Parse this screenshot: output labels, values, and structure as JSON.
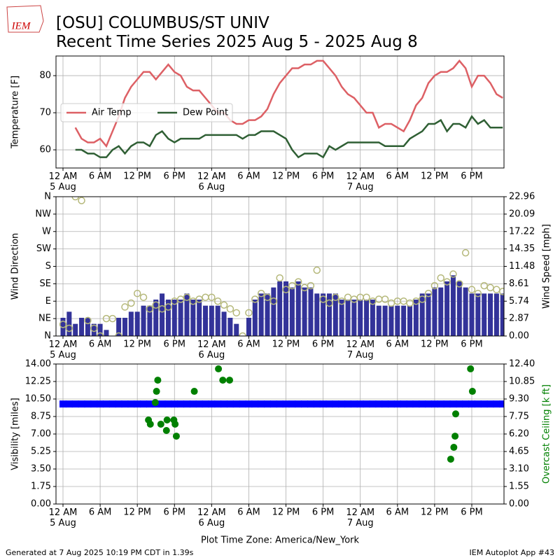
{
  "header": {
    "logo": "IEM",
    "title": "[OSU] COLUMBUS/ST UNIV",
    "subtitle": "Recent Time Series 2025 Aug 5 - 2025 Aug 8"
  },
  "footer": {
    "generated": "Generated at 7 Aug 2025 10:19 PM CDT in 1.39s",
    "app": "IEM Autoplot App #43"
  },
  "chart_data": [
    {
      "type": "line",
      "ylabel": "Temperature [F]",
      "grid": true,
      "legend": "center left",
      "xlim": [
        -1.13,
        71.2
      ],
      "ylim": [
        55.1,
        85.3
      ],
      "yticks": [
        60,
        70,
        80
      ],
      "xticks": [
        {
          "value": 0,
          "label": "12 AM\n5 Aug"
        },
        {
          "value": 6,
          "label": "6 AM"
        },
        {
          "value": 12,
          "label": "12 PM"
        },
        {
          "value": 18,
          "label": "6 PM"
        },
        {
          "value": 24,
          "label": "12 AM\n6 Aug"
        },
        {
          "value": 30,
          "label": "6 AM"
        },
        {
          "value": 36,
          "label": "12 PM"
        },
        {
          "value": 42,
          "label": "6 PM"
        },
        {
          "value": 48,
          "label": "12 AM\n7 Aug"
        },
        {
          "value": 54,
          "label": "6 AM"
        },
        {
          "value": 60,
          "label": "12 PM"
        },
        {
          "value": 66,
          "label": "6 PM"
        }
      ],
      "x": [
        2,
        3,
        4,
        5,
        6,
        7,
        8,
        9,
        10,
        11,
        12,
        13,
        14,
        15,
        16,
        17,
        18,
        19,
        20,
        21,
        22,
        23,
        24,
        25,
        26,
        27,
        28,
        29,
        30,
        31,
        32,
        33,
        34,
        35,
        36,
        37,
        38,
        39,
        40,
        41,
        42,
        43,
        44,
        45,
        46,
        47,
        48,
        49,
        50,
        51,
        52,
        53,
        54,
        55,
        56,
        57,
        58,
        59,
        60,
        61,
        62,
        63,
        64,
        65,
        66,
        67,
        68,
        69,
        70,
        71
      ],
      "series": [
        {
          "name": "Air Temp",
          "color": "#dd6065",
          "values": [
            66,
            63,
            62,
            62,
            63,
            61,
            65,
            69,
            74,
            77,
            79,
            81,
            81,
            79,
            81,
            83,
            81,
            80,
            77,
            76,
            76,
            74,
            72,
            70,
            70,
            68,
            67,
            67,
            68,
            68,
            69,
            71,
            75,
            78,
            80,
            82,
            82,
            83,
            83,
            84,
            84,
            82,
            80,
            77,
            75,
            74,
            72,
            70,
            70,
            66,
            67,
            67,
            66,
            65,
            68,
            72,
            74,
            78,
            80,
            81,
            81,
            82,
            84,
            82,
            77,
            80,
            80,
            78,
            75,
            74
          ]
        },
        {
          "name": "Dew Point",
          "color": "#2f5f34",
          "values": [
            60,
            60,
            59,
            59,
            58,
            58,
            60,
            61,
            59,
            61,
            62,
            62,
            61,
            64,
            65,
            63,
            62,
            63,
            63,
            63,
            63,
            64,
            64,
            64,
            64,
            64,
            64,
            63,
            64,
            64,
            65,
            65,
            65,
            64,
            63,
            60,
            58,
            59,
            59,
            59,
            58,
            61,
            60,
            61,
            62,
            62,
            62,
            62,
            62,
            62,
            61,
            61,
            61,
            61,
            63,
            64,
            65,
            67,
            67,
            68,
            65,
            67,
            67,
            66,
            69,
            67,
            68,
            66,
            66,
            66
          ]
        }
      ]
    },
    {
      "type": "combo",
      "ylabel": "Wind Direction",
      "y2label": "Wind Speed [mph]",
      "grid": true,
      "xlim": [
        -1.13,
        71.2
      ],
      "ylim": [
        0,
        360
      ],
      "y2lim": [
        0,
        22.96
      ],
      "yticks": [
        {
          "value": 0,
          "label": "N"
        },
        {
          "value": 45,
          "label": "NE"
        },
        {
          "value": 90,
          "label": "E"
        },
        {
          "value": 135,
          "label": "SE"
        },
        {
          "value": 180,
          "label": "S"
        },
        {
          "value": 225,
          "label": "SW"
        },
        {
          "value": 270,
          "label": "W"
        },
        {
          "value": 315,
          "label": "NW"
        },
        {
          "value": 360,
          "label": "N"
        }
      ],
      "y2ticks": [
        {
          "value": 0,
          "label": "0.00"
        },
        2.87,
        5.74,
        8.61,
        11.48,
        14.35,
        17.22,
        20.09,
        22.96
      ],
      "xticks": [
        {
          "value": 0,
          "label": "12 AM\n5 Aug"
        },
        {
          "value": 6,
          "label": "6 AM"
        },
        {
          "value": 12,
          "label": "12 PM"
        },
        {
          "value": 18,
          "label": "6 PM"
        },
        {
          "value": 24,
          "label": "12 AM\n6 Aug"
        },
        {
          "value": 30,
          "label": "6 AM"
        },
        {
          "value": 36,
          "label": "12 PM"
        },
        {
          "value": 42,
          "label": "6 PM"
        },
        {
          "value": 48,
          "label": "12 AM\n7 Aug"
        },
        {
          "value": 54,
          "label": "6 AM"
        },
        {
          "value": 60,
          "label": "12 PM"
        },
        {
          "value": 66,
          "label": "6 PM"
        }
      ],
      "x": [
        0,
        1,
        2,
        3,
        4,
        5,
        6,
        7,
        8,
        9,
        10,
        11,
        12,
        13,
        14,
        15,
        16,
        17,
        18,
        19,
        20,
        21,
        22,
        23,
        24,
        25,
        26,
        27,
        28,
        29,
        30,
        31,
        32,
        33,
        34,
        35,
        36,
        37,
        38,
        39,
        40,
        41,
        42,
        43,
        44,
        45,
        46,
        47,
        48,
        49,
        50,
        51,
        52,
        53,
        54,
        55,
        56,
        57,
        58,
        59,
        60,
        61,
        62,
        63,
        64,
        65,
        66,
        67,
        68,
        69,
        70,
        71
      ],
      "series": [
        {
          "type": "bar",
          "axis": "y2",
          "color": "#333399",
          "values": [
            3,
            4,
            2,
            3,
            3,
            2,
            2,
            1,
            0,
            3,
            3,
            4,
            4,
            5,
            5,
            6,
            7,
            6,
            6,
            6,
            7,
            6,
            6,
            5,
            5,
            5,
            4,
            3,
            2,
            0,
            3,
            6,
            7,
            7,
            8,
            9,
            9,
            8,
            9,
            8,
            8,
            7,
            7,
            7,
            7,
            6,
            6,
            6,
            6,
            6,
            6,
            5,
            5,
            5,
            5,
            5,
            5,
            6,
            7,
            7,
            8,
            8,
            9,
            10,
            9,
            8,
            7,
            7,
            7,
            7,
            7,
            7
          ]
        },
        {
          "type": "circle",
          "color": "#b5b87a",
          "values": [
            30,
            20,
            360,
            350,
            40,
            20,
            0,
            45,
            45,
            0,
            75,
            85,
            110,
            100,
            70,
            80,
            70,
            75,
            90,
            95,
            100,
            90,
            95,
            100,
            100,
            90,
            80,
            70,
            60,
            0,
            60,
            95,
            110,
            100,
            90,
            150,
            120,
            130,
            140,
            125,
            130,
            170,
            95,
            85,
            100,
            90,
            100,
            95,
            100,
            100,
            90,
            95,
            95,
            85,
            90,
            90,
            85,
            90,
            95,
            110,
            130,
            150,
            140,
            160,
            135,
            215,
            120,
            110,
            130,
            125,
            120,
            115
          ]
        }
      ]
    },
    {
      "type": "combo",
      "ylabel": "Visibility [miles]",
      "y2label": "Overcast Ceiling [k ft]",
      "y2label_color": "#008000",
      "xlabel": "Plot Time Zone: America/New_York",
      "grid": true,
      "xlim": [
        -1.13,
        71.2
      ],
      "ylim": [
        0,
        14
      ],
      "y2lim": [
        0,
        12.4
      ],
      "yticks": [
        {
          "value": 0,
          "label": "0.00"
        },
        1.75,
        {
          "value": 3.5,
          "label": "3.50"
        },
        5.25,
        {
          "value": 7,
          "label": "7.00"
        },
        8.75,
        {
          "value": 10.5,
          "label": "10.50"
        },
        12.25,
        {
          "value": 14,
          "label": "14.00"
        }
      ],
      "y2ticks": [
        {
          "value": 0,
          "label": "0.00"
        },
        1.55,
        {
          "value": 3.1,
          "label": "3.10"
        },
        4.65,
        {
          "value": 6.2,
          "label": "6.20"
        },
        7.75,
        {
          "value": 9.3,
          "label": "9.30"
        },
        10.85,
        {
          "value": 12.4,
          "label": "12.40"
        }
      ],
      "xticks": [
        {
          "value": 0,
          "label": "12 AM\n5 Aug"
        },
        {
          "value": 6,
          "label": "6 AM"
        },
        {
          "value": 12,
          "label": "12 PM"
        },
        {
          "value": 18,
          "label": "6 PM"
        },
        {
          "value": 24,
          "label": "12 AM\n6 Aug"
        },
        {
          "value": 30,
          "label": "6 AM"
        },
        {
          "value": 36,
          "label": "12 PM"
        },
        {
          "value": 42,
          "label": "6 PM"
        },
        {
          "value": 48,
          "label": "12 AM\n7 Aug"
        },
        {
          "value": 54,
          "label": "6 AM"
        },
        {
          "value": 60,
          "label": "12 PM"
        },
        {
          "value": 66,
          "label": "6 PM"
        }
      ],
      "series": [
        {
          "type": "square",
          "color": "#0000ff",
          "x": [
            0,
            1,
            2,
            3,
            4,
            5,
            6,
            7,
            8,
            9,
            10,
            11,
            12,
            13,
            14,
            15,
            16,
            17,
            18,
            19,
            20,
            21,
            22,
            23,
            24,
            25,
            26,
            27,
            28,
            29,
            30,
            31,
            32,
            33,
            34,
            35,
            36,
            37,
            38,
            39,
            40,
            41,
            42,
            43,
            44,
            45,
            46,
            47,
            48,
            49,
            50,
            51,
            52,
            53,
            54,
            55,
            56,
            57,
            58,
            59,
            60,
            61,
            62,
            63,
            64,
            65,
            66,
            67,
            68,
            69,
            70,
            71
          ],
          "values": [
            10,
            10,
            10,
            10,
            10,
            10,
            10,
            10,
            10,
            10,
            10,
            10,
            10,
            10,
            10,
            10,
            10,
            10,
            10,
            10,
            10,
            10,
            10,
            10,
            10,
            10,
            10,
            10,
            10,
            10,
            10,
            10,
            10,
            10,
            10,
            10,
            10,
            10,
            10,
            10,
            10,
            10,
            10,
            10,
            10,
            10,
            10,
            10,
            10,
            10,
            10,
            10,
            10,
            10,
            10,
            10,
            10,
            10,
            10,
            10,
            10,
            10,
            10,
            10,
            10,
            10,
            10,
            10,
            10,
            10,
            10,
            10
          ]
        },
        {
          "type": "dot",
          "axis": "y2",
          "color": "#008000",
          "x": [
            13.8,
            14.1,
            14.9,
            15.1,
            15.3,
            15.8,
            16.7,
            16.8,
            17.9,
            18.1,
            18.3,
            21.2,
            25.1,
            25.8,
            26.9,
            62.6,
            63.1,
            63.3,
            63.4,
            65.8,
            66.1
          ],
          "values": [
            7.44,
            7.07,
            8.99,
            9.98,
            10.97,
            7.07,
            6.51,
            7.44,
            7.44,
            7.07,
            6.01,
            9.98,
            11.97,
            10.97,
            10.97,
            3.97,
            5.02,
            6.01,
            7.98,
            11.97,
            9.98
          ]
        }
      ]
    }
  ]
}
